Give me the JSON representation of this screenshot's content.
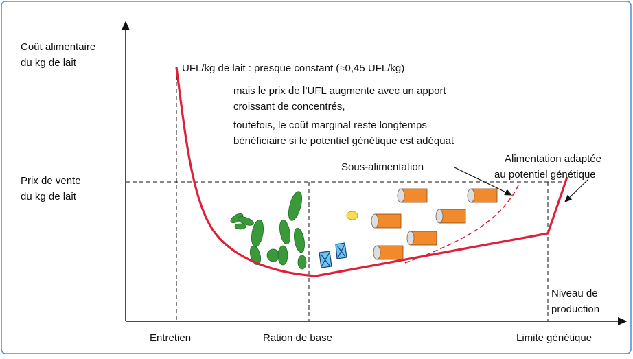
{
  "y_axis_label": [
    "Coût alimentaire",
    "du kg de lait"
  ],
  "price_label": [
    "Prix de vente",
    "du kg de lait"
  ],
  "notes": [
    "UFL/kg de lait : presque constant (≈0,45 UFL/kg)",
    "mais le prix de l’UFL augmente avec un apport",
    "croissant de concentrés,",
    "toutefois, le coût marginal reste longtemps",
    "bénéficiaire si le potentiel génétique est adéquat"
  ],
  "curve_labels": {
    "under": "Sous-alimentation",
    "adapted": [
      "Alimentation adaptée",
      "au potentiel génétique"
    ]
  },
  "x_axis_label": [
    "Niveau de",
    "production"
  ],
  "x_labels": [
    "Entretien",
    "Ration de base",
    "Limite génétique"
  ]
}
